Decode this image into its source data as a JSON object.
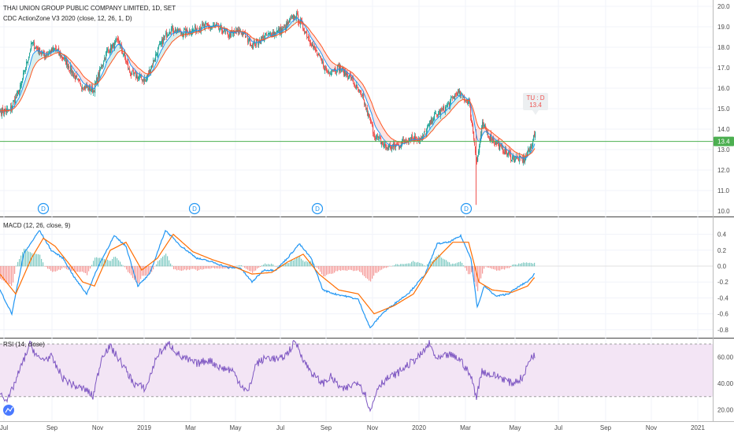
{
  "chart_data": {
    "type": "line",
    "title": "THAI UNION GROUP PUBLIC COMPANY LIMITED, 1D, SET",
    "x_labels": [
      "Jul",
      "Sep",
      "Nov",
      "2019",
      "Mar",
      "May",
      "Jul",
      "Sep",
      "Nov",
      "2020",
      "Mar",
      "May",
      "Jul",
      "Sep",
      "Nov",
      "2021"
    ],
    "panes": {
      "price": {
        "indicator_label": "CDC ActionZone V3 2020 (close, 12, 26, 1, D)",
        "y_ticks": [
          "20.0",
          "19.0",
          "18.0",
          "17.0",
          "16.0",
          "15.0",
          "14.0",
          "13.0",
          "12.0",
          "11.0",
          "10.0"
        ],
        "ylim": [
          10,
          20
        ],
        "last_price_label": "13.4",
        "last_price": 13.4,
        "tooltip_symbol": "TU : D",
        "tooltip_value": "13.4",
        "dividend_marker": "D",
        "candle_up_color": "#26a69a",
        "candle_down_color": "#ef5350",
        "fast_ma_color": "#2196f3",
        "slow_ma_color": "#ff5722",
        "last_price_line_color": "#4caf50",
        "dividend_color": "#2196f3"
      },
      "macd": {
        "label": "MACD (12, 26, close, 9)",
        "y_ticks": [
          "0.4",
          "0.2",
          "0.0",
          "-0.2",
          "-0.4",
          "-0.6",
          "-0.8"
        ],
        "ylim": [
          -0.85,
          0.5
        ],
        "macd_color": "#2196f3",
        "signal_color": "#ff6d00",
        "hist_up_color": "#26a69a",
        "hist_down_color": "#ef5350"
      },
      "rsi": {
        "label": "RSI (14, close)",
        "y_ticks": [
          "60.00",
          "40.00",
          "20.00"
        ],
        "ylim": [
          15,
          75
        ],
        "upper_band": 70,
        "lower_band": 30,
        "line_color": "#7e57c2",
        "band_fill": "#f3e5f5"
      }
    },
    "close_anchors": [
      [
        0,
        14.9
      ],
      [
        12,
        14.9
      ],
      [
        25,
        16.0
      ],
      [
        40,
        18.2
      ],
      [
        55,
        17.6
      ],
      [
        70,
        17.9
      ],
      [
        85,
        17.2
      ],
      [
        100,
        16.2
      ],
      [
        118,
        15.9
      ],
      [
        135,
        17.8
      ],
      [
        150,
        18.3
      ],
      [
        165,
        16.7
      ],
      [
        185,
        16.4
      ],
      [
        200,
        17.9
      ],
      [
        215,
        18.9
      ],
      [
        235,
        18.7
      ],
      [
        255,
        19.0
      ],
      [
        275,
        19.0
      ],
      [
        290,
        18.6
      ],
      [
        305,
        18.8
      ],
      [
        320,
        18.1
      ],
      [
        340,
        18.6
      ],
      [
        360,
        18.9
      ],
      [
        375,
        19.6
      ],
      [
        388,
        18.7
      ],
      [
        400,
        17.8
      ],
      [
        415,
        16.8
      ],
      [
        430,
        17.0
      ],
      [
        445,
        16.5
      ],
      [
        460,
        15.5
      ],
      [
        475,
        13.7
      ],
      [
        490,
        13.1
      ],
      [
        505,
        13.2
      ],
      [
        520,
        13.6
      ],
      [
        535,
        13.5
      ],
      [
        550,
        14.6
      ],
      [
        565,
        15.0
      ],
      [
        580,
        15.8
      ],
      [
        595,
        15.3
      ],
      [
        605,
        12.4
      ],
      [
        612,
        14.2
      ],
      [
        620,
        13.7
      ],
      [
        635,
        13.1
      ],
      [
        650,
        12.6
      ],
      [
        665,
        12.5
      ],
      [
        672,
        13.0
      ],
      [
        678,
        13.7
      ]
    ],
    "macd_anchors": [
      [
        0,
        -0.3
      ],
      [
        15,
        -0.6
      ],
      [
        30,
        0.15
      ],
      [
        50,
        0.45
      ],
      [
        65,
        0.2
      ],
      [
        80,
        0.1
      ],
      [
        95,
        -0.15
      ],
      [
        110,
        -0.35
      ],
      [
        125,
        0.0
      ],
      [
        145,
        0.38
      ],
      [
        160,
        0.25
      ],
      [
        175,
        -0.25
      ],
      [
        190,
        -0.1
      ],
      [
        210,
        0.45
      ],
      [
        230,
        0.25
      ],
      [
        250,
        0.1
      ],
      [
        270,
        0.05
      ],
      [
        290,
        -0.02
      ],
      [
        305,
        -0.02
      ],
      [
        320,
        -0.2
      ],
      [
        335,
        -0.05
      ],
      [
        350,
        -0.05
      ],
      [
        365,
        0.1
      ],
      [
        380,
        0.28
      ],
      [
        395,
        0.1
      ],
      [
        410,
        -0.3
      ],
      [
        425,
        -0.35
      ],
      [
        440,
        -0.38
      ],
      [
        455,
        -0.42
      ],
      [
        470,
        -0.78
      ],
      [
        485,
        -0.6
      ],
      [
        500,
        -0.48
      ],
      [
        520,
        -0.33
      ],
      [
        540,
        -0.1
      ],
      [
        555,
        0.28
      ],
      [
        570,
        0.3
      ],
      [
        585,
        0.38
      ],
      [
        598,
        0.1
      ],
      [
        606,
        -0.52
      ],
      [
        615,
        -0.25
      ],
      [
        630,
        -0.38
      ],
      [
        645,
        -0.35
      ],
      [
        660,
        -0.25
      ],
      [
        672,
        -0.18
      ],
      [
        678,
        -0.1
      ]
    ],
    "signal_anchors": [
      [
        0,
        -0.1
      ],
      [
        20,
        -0.35
      ],
      [
        40,
        0.1
      ],
      [
        55,
        0.35
      ],
      [
        70,
        0.25
      ],
      [
        90,
        0.0
      ],
      [
        105,
        -0.2
      ],
      [
        120,
        -0.25
      ],
      [
        140,
        0.2
      ],
      [
        160,
        0.3
      ],
      [
        180,
        -0.05
      ],
      [
        200,
        0.1
      ],
      [
        220,
        0.4
      ],
      [
        245,
        0.18
      ],
      [
        270,
        0.08
      ],
      [
        295,
        0.0
      ],
      [
        320,
        -0.1
      ],
      [
        345,
        -0.08
      ],
      [
        365,
        0.05
      ],
      [
        385,
        0.15
      ],
      [
        405,
        -0.1
      ],
      [
        430,
        -0.3
      ],
      [
        455,
        -0.35
      ],
      [
        475,
        -0.6
      ],
      [
        500,
        -0.5
      ],
      [
        525,
        -0.35
      ],
      [
        550,
        0.05
      ],
      [
        575,
        0.3
      ],
      [
        595,
        0.3
      ],
      [
        608,
        -0.2
      ],
      [
        625,
        -0.3
      ],
      [
        650,
        -0.33
      ],
      [
        670,
        -0.25
      ],
      [
        678,
        -0.15
      ]
    ],
    "rsi_anchors": [
      [
        0,
        33
      ],
      [
        10,
        27
      ],
      [
        25,
        50
      ],
      [
        38,
        70
      ],
      [
        50,
        58
      ],
      [
        65,
        60
      ],
      [
        80,
        44
      ],
      [
        95,
        38
      ],
      [
        110,
        35
      ],
      [
        118,
        30
      ],
      [
        130,
        62
      ],
      [
        140,
        68
      ],
      [
        155,
        55
      ],
      [
        170,
        40
      ],
      [
        185,
        36
      ],
      [
        200,
        62
      ],
      [
        215,
        70
      ],
      [
        230,
        60
      ],
      [
        250,
        55
      ],
      [
        265,
        58
      ],
      [
        280,
        52
      ],
      [
        295,
        50
      ],
      [
        305,
        40
      ],
      [
        315,
        33
      ],
      [
        325,
        55
      ],
      [
        340,
        60
      ],
      [
        355,
        58
      ],
      [
        365,
        63
      ],
      [
        375,
        72
      ],
      [
        388,
        55
      ],
      [
        400,
        45
      ],
      [
        410,
        40
      ],
      [
        420,
        45
      ],
      [
        435,
        35
      ],
      [
        445,
        38
      ],
      [
        455,
        42
      ],
      [
        465,
        30
      ],
      [
        470,
        18
      ],
      [
        480,
        38
      ],
      [
        490,
        43
      ],
      [
        505,
        48
      ],
      [
        520,
        55
      ],
      [
        535,
        62
      ],
      [
        545,
        70
      ],
      [
        555,
        58
      ],
      [
        570,
        62
      ],
      [
        585,
        58
      ],
      [
        598,
        45
      ],
      [
        605,
        30
      ],
      [
        612,
        50
      ],
      [
        620,
        47
      ],
      [
        635,
        45
      ],
      [
        650,
        40
      ],
      [
        665,
        45
      ],
      [
        672,
        58
      ],
      [
        678,
        62
      ]
    ],
    "dividend_bars": [
      55,
      247,
      403,
      592
    ]
  }
}
